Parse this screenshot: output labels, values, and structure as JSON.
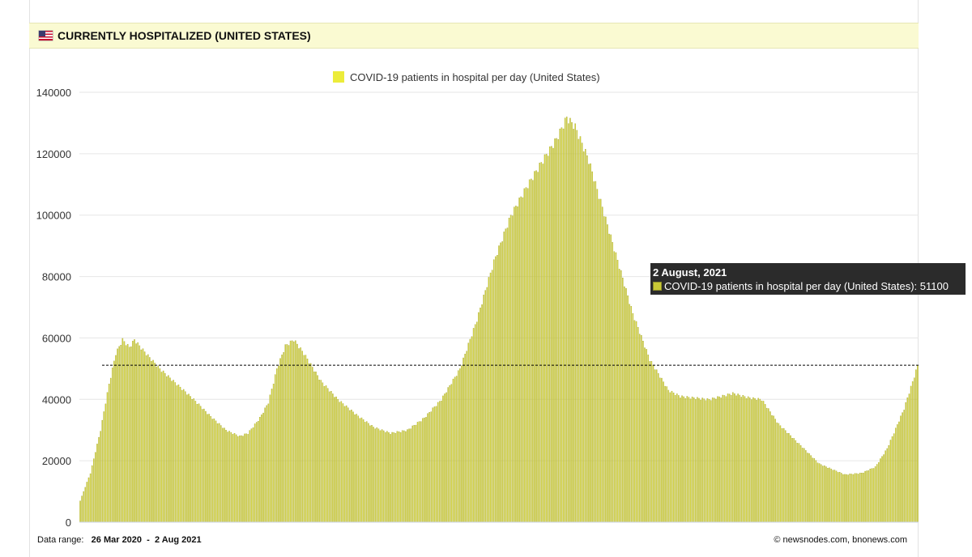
{
  "header": {
    "title": "CURRENTLY HOSPITALIZED (UNITED STATES)",
    "flag_icon": "us-flag-icon"
  },
  "footer": {
    "range_label": "Data range:",
    "range_start": "26 Mar 2020",
    "range_sep": "-",
    "range_end": "2 Aug 2021",
    "credit": "©  newsnodes.com, bnonews.com"
  },
  "tooltip": {
    "title": "2 August, 2021",
    "series_label": "COVID-19 patients in hospital per day (United States): 51100"
  },
  "colors": {
    "bar_fill": "#dede3c",
    "bar_stroke": "#9e9e2a",
    "legend_swatch": "#ecec3a",
    "reference_line": "#000000"
  },
  "chart_data": {
    "type": "bar",
    "title": "",
    "legend": [
      "COVID-19 patients in hospital per day (United States)"
    ],
    "legend_position": "top-center",
    "xlabel": "",
    "ylabel": "",
    "ylim": [
      0,
      140000
    ],
    "yticks": [
      0,
      20000,
      40000,
      60000,
      80000,
      100000,
      120000,
      140000
    ],
    "grid": "horizontal",
    "x_start": "26 Mar 2020",
    "x_end": "2 Aug 2021",
    "reference_line_value": 51100,
    "series": [
      {
        "name": "COVID-19 patients in hospital per day (United States)",
        "keypoints": [
          [
            "26 Mar 2020",
            7000
          ],
          [
            "1 Apr 2020",
            16000
          ],
          [
            "7 Apr 2020",
            30000
          ],
          [
            "12 Apr 2020",
            45000
          ],
          [
            "16 Apr 2020",
            55000
          ],
          [
            "20 Apr 2020",
            59500
          ],
          [
            "24 Apr 2020",
            57000
          ],
          [
            "27 Apr 2020",
            59500
          ],
          [
            "3 May 2020",
            55500
          ],
          [
            "12 May 2020",
            50000
          ],
          [
            "22 May 2020",
            45000
          ],
          [
            "1 Jun 2020",
            40000
          ],
          [
            "10 Jun 2020",
            35000
          ],
          [
            "20 Jun 2020",
            30000
          ],
          [
            "28 Jun 2020",
            28000
          ],
          [
            "3 Jul 2020",
            29000
          ],
          [
            "10 Jul 2020",
            34000
          ],
          [
            "15 Jul 2020",
            39000
          ],
          [
            "20 Jul 2020",
            50000
          ],
          [
            "25 Jul 2020",
            57500
          ],
          [
            "30 Jul 2020",
            59500
          ],
          [
            "5 Aug 2020",
            55000
          ],
          [
            "15 Aug 2020",
            46000
          ],
          [
            "25 Aug 2020",
            40000
          ],
          [
            "5 Sep 2020",
            35000
          ],
          [
            "15 Sep 2020",
            31000
          ],
          [
            "25 Sep 2020",
            29000
          ],
          [
            "5 Oct 2020",
            30000
          ],
          [
            "15 Oct 2020",
            34000
          ],
          [
            "25 Oct 2020",
            40000
          ],
          [
            "5 Nov 2020",
            50000
          ],
          [
            "15 Nov 2020",
            66000
          ],
          [
            "25 Nov 2020",
            85000
          ],
          [
            "5 Dec 2020",
            100000
          ],
          [
            "15 Dec 2020",
            110000
          ],
          [
            "25 Dec 2020",
            119000
          ],
          [
            "1 Jan 2021",
            125000
          ],
          [
            "7 Jan 2021",
            132000
          ],
          [
            "12 Jan 2021",
            129000
          ],
          [
            "20 Jan 2021",
            118000
          ],
          [
            "1 Feb 2021",
            95000
          ],
          [
            "15 Feb 2021",
            68000
          ],
          [
            "25 Feb 2021",
            53000
          ],
          [
            "8 Mar 2021",
            43000
          ],
          [
            "15 Mar 2021",
            41000
          ],
          [
            "1 Apr 2021",
            40000
          ],
          [
            "15 Apr 2021",
            42000
          ],
          [
            "25 Apr 2021",
            40500
          ],
          [
            "2 May 2021",
            40000
          ],
          [
            "12 May 2021",
            32000
          ],
          [
            "25 May 2021",
            25000
          ],
          [
            "5 Jun 2021",
            19000
          ],
          [
            "20 Jun 2021",
            15500
          ],
          [
            "30 Jun 2021",
            16000
          ],
          [
            "8 Jul 2021",
            18000
          ],
          [
            "15 Jul 2021",
            24000
          ],
          [
            "25 Jul 2021",
            37000
          ],
          [
            "2 Aug 2021",
            51100
          ]
        ]
      }
    ]
  }
}
